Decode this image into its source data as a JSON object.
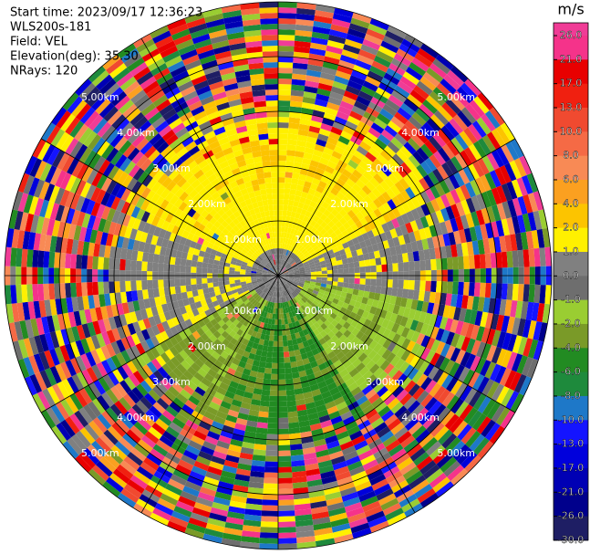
{
  "header": {
    "lines": [
      "Start time: 2023/09/17 12:36:23",
      "WLS200s-181",
      "Field: VEL",
      "Elevation(deg): 35.30",
      "NRays: 120"
    ]
  },
  "range_labels": [
    "1.00km",
    "2.00km",
    "3.00km",
    "4.00km",
    "5.00km"
  ],
  "colorbar": {
    "title": "m/s",
    "ticks": [
      {
        "value": 26,
        "label": "26.0"
      },
      {
        "value": 21,
        "label": "21.0"
      },
      {
        "value": 17,
        "label": "17.0"
      },
      {
        "value": 13,
        "label": "13.0"
      },
      {
        "value": 10,
        "label": "10.0"
      },
      {
        "value": 8,
        "label": "8.0"
      },
      {
        "value": 6,
        "label": "6.0"
      },
      {
        "value": 4,
        "label": "4.0"
      },
      {
        "value": 2,
        "label": "2.0"
      },
      {
        "value": 1,
        "label": "1.0"
      },
      {
        "value": 0,
        "label": "0.0"
      },
      {
        "value": -1,
        "label": "-1.0"
      },
      {
        "value": -2,
        "label": "-2.0"
      },
      {
        "value": -4,
        "label": "-4.0"
      },
      {
        "value": -6,
        "label": "-6.0"
      },
      {
        "value": -8,
        "label": "-8.0"
      },
      {
        "value": -10,
        "label": "-10.0"
      },
      {
        "value": -13,
        "label": "-13.0"
      },
      {
        "value": -17,
        "label": "-17.0"
      },
      {
        "value": -21,
        "label": "-21.0"
      },
      {
        "value": -26,
        "label": "-26.0"
      },
      {
        "value": -30,
        "label": "-30.0"
      }
    ],
    "colors": [
      "#f03c96",
      "#f5338a",
      "#e80000",
      "#f02010",
      "#f04a30",
      "#f56a45",
      "#f88a55",
      "#fba020",
      "#fcc400",
      "#fff000",
      "#808080",
      "#6e6e6e",
      "#9acd32",
      "#7a9a28",
      "#228b22",
      "#1e8a3c",
      "#1e78c8",
      "#1414ff",
      "#0000dc",
      "#0000b4",
      "#00008c",
      "#1e1e64"
    ]
  }
}
